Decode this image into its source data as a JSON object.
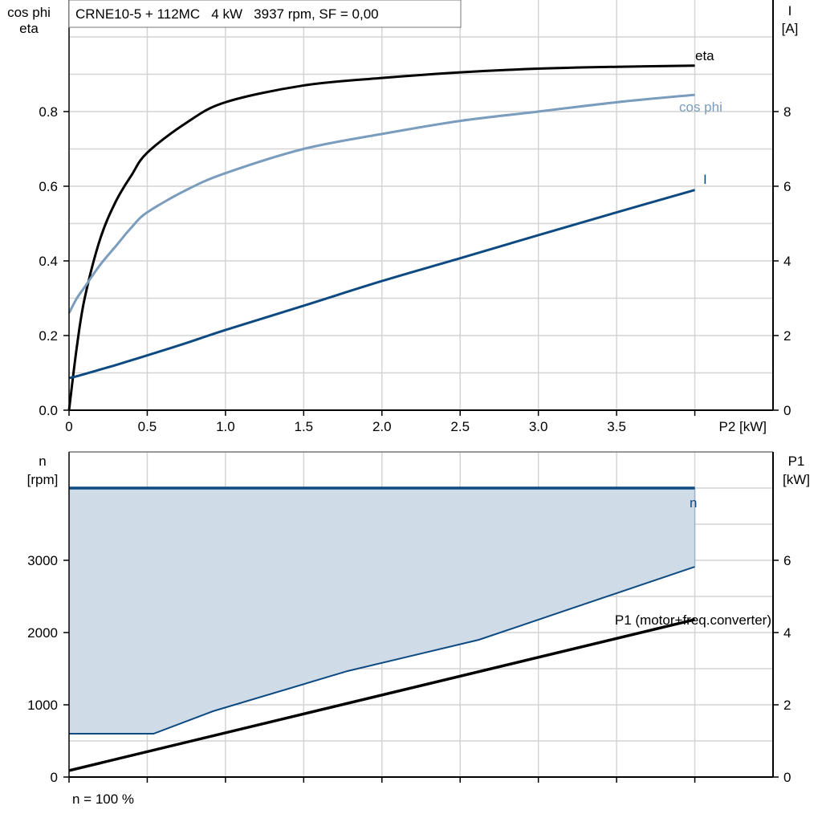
{
  "chart_data": [
    {
      "type": "line",
      "title": "CRNE10-5 + 112MC   4 kW   3937 rpm, SF = 0,00",
      "xlabel": "P2 [kW]",
      "ylabel_left": [
        "cos phi",
        "eta"
      ],
      "ylabel_right": [
        "I",
        "[A]"
      ],
      "xlim": [
        0,
        4.5
      ],
      "ylim_left": [
        0,
        1.0
      ],
      "ylim_right": [
        0,
        10
      ],
      "x_ticks": [
        "0",
        "0.5",
        "1.0",
        "1.5",
        "2.0",
        "2.5",
        "3.0",
        "3.5",
        ""
      ],
      "y_left_ticks": [
        "0.0",
        "0.2",
        "0.4",
        "0.6",
        "0.8"
      ],
      "y_right_ticks": [
        "0",
        "2",
        "4",
        "6",
        "8"
      ],
      "grid": true,
      "x": [
        0,
        0.05,
        0.1,
        0.2,
        0.3,
        0.4,
        0.5,
        0.75,
        1.0,
        1.5,
        2.0,
        2.5,
        3.0,
        3.5,
        4.0
      ],
      "series": [
        {
          "name": "eta",
          "axis": "left",
          "color": "#000000",
          "values": [
            0,
            0.17,
            0.3,
            0.46,
            0.56,
            0.63,
            0.69,
            0.77,
            0.825,
            0.87,
            0.89,
            0.905,
            0.915,
            0.92,
            0.923
          ]
        },
        {
          "name": "cos phi",
          "axis": "left",
          "color": "#7a9cbd",
          "values": [
            0.26,
            0.3,
            0.33,
            0.39,
            0.44,
            0.49,
            0.53,
            0.59,
            0.635,
            0.7,
            0.74,
            0.775,
            0.8,
            0.825,
            0.845
          ]
        },
        {
          "name": "I",
          "axis": "right",
          "color": "#0d4a82",
          "values": [
            0.86,
            0.91,
            0.97,
            1.09,
            1.21,
            1.34,
            1.47,
            1.8,
            2.15,
            2.8,
            3.46,
            4.07,
            4.69,
            5.3,
            5.9
          ]
        }
      ]
    },
    {
      "type": "area",
      "ylabel_left": [
        "n",
        "[rpm]"
      ],
      "ylabel_right": [
        "P1",
        "[kW]"
      ],
      "xlim": [
        0,
        4.5
      ],
      "ylim_left": [
        0,
        4500
      ],
      "ylim_right": [
        0,
        9
      ],
      "y_left_ticks": [
        "0",
        "1000",
        "2000",
        "3000"
      ],
      "y_right_ticks": [
        "0",
        "2",
        "4",
        "6"
      ],
      "grid": true,
      "footnote": "n = 100 %",
      "series": [
        {
          "name": "n",
          "axis": "left",
          "color": "#0d4a82",
          "x": [
            0,
            4.0
          ],
          "values": [
            4000,
            4000
          ]
        },
        {
          "axis": "left",
          "color": "#0d4a82",
          "fill": "#cfdbe6",
          "x": [
            0,
            0.54,
            0.92,
            1.78,
            2.62,
            4.0
          ],
          "values": [
            600,
            600,
            911,
            1467,
            1900,
            2911
          ]
        },
        {
          "name": "P1 (motor+freq.converter)",
          "axis": "right",
          "color": "#000000",
          "x": [
            0,
            4.0
          ],
          "values": [
            0.18,
            4.36
          ]
        }
      ]
    }
  ]
}
